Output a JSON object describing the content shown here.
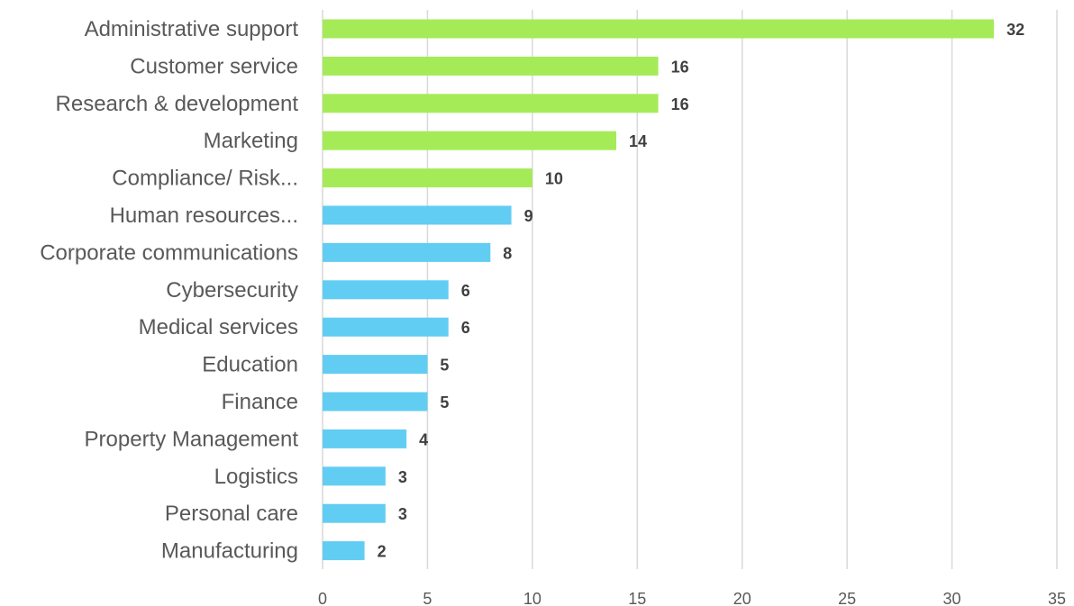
{
  "chart_data": {
    "type": "bar",
    "orientation": "horizontal",
    "categories": [
      "Administrative support",
      "Customer service",
      "Research & development",
      "Marketing",
      "Compliance/ Risk...",
      "Human resources...",
      "Corporate communications",
      "Cybersecurity",
      "Medical services",
      "Education",
      "Finance",
      "Property Management",
      "Logistics",
      "Personal care",
      "Manufacturing"
    ],
    "values": [
      32,
      16,
      16,
      14,
      10,
      9,
      8,
      6,
      6,
      5,
      5,
      4,
      3,
      3,
      2
    ],
    "data_labels": [
      "32",
      "16",
      "16",
      "14",
      "10",
      "9",
      "8",
      "6",
      "6",
      "5",
      "5",
      "4",
      "3",
      "3",
      "2"
    ],
    "bar_colors": [
      "#a5eb58",
      "#a5eb58",
      "#a5eb58",
      "#a5eb58",
      "#a5eb58",
      "#62cdf2",
      "#62cdf2",
      "#62cdf2",
      "#62cdf2",
      "#62cdf2",
      "#62cdf2",
      "#62cdf2",
      "#62cdf2",
      "#62cdf2",
      "#62cdf2"
    ],
    "xlim": [
      0,
      35
    ],
    "x_ticks": [
      "0",
      "5",
      "10",
      "15",
      "20",
      "25",
      "30",
      "35"
    ],
    "x_tick_values": [
      0,
      5,
      10,
      15,
      20,
      25,
      30,
      35
    ],
    "grid": "vertical",
    "legend": "none",
    "title": "",
    "xlabel": "",
    "ylabel": ""
  }
}
